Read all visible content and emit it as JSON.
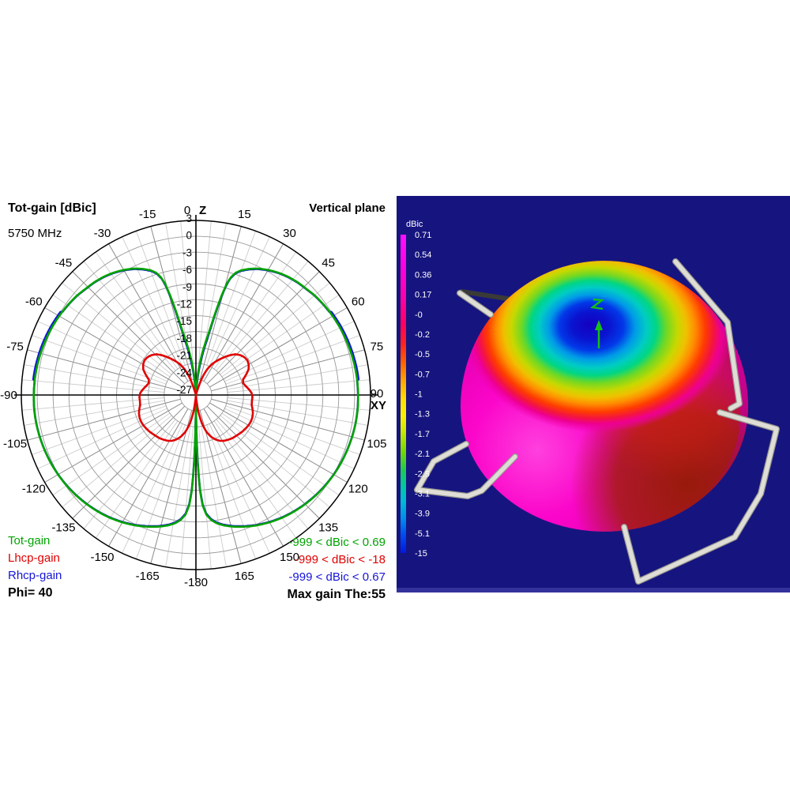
{
  "left_panel": {
    "title": "Tot-gain [dBic]",
    "frequency": "5750 MHz",
    "plane_label": "Vertical plane",
    "axis_top_tick": "0",
    "axis_top_name": "Z",
    "axis_right_tick": "90",
    "axis_right_name": "XY",
    "legend": [
      {
        "label": "Tot-gain",
        "color": "#00a300"
      },
      {
        "label": "Lhcp-gain",
        "color": "#e00000"
      },
      {
        "label": "Rhcp-gain",
        "color": "#1515d8"
      }
    ],
    "phi_label": "Phi= 40",
    "stats": [
      {
        "text": "-999 < dBic < 0.69",
        "color": "#00a300"
      },
      {
        "text": "-999 < dBic < -18",
        "color": "#e00000"
      },
      {
        "text": "-999 < dBic < 0.67",
        "color": "#1515d8"
      }
    ],
    "max_gain_label": "Max gain The:55"
  },
  "chart_data": {
    "type": "polar",
    "title": "Tot-gain [dBic]",
    "plane": "Vertical plane",
    "frequency_mhz": 5750,
    "phi_deg": 40,
    "max_gain_theta_deg": 55,
    "radial_ticks_dbic": [
      3,
      0,
      -3,
      -6,
      -9,
      -12,
      -15,
      -18,
      -21,
      -24,
      -27
    ],
    "radial_min_dbic": -30,
    "radial_max_dbic": 3,
    "angle_step_minor_deg": 5,
    "angle_step_major_deg": 15,
    "angle_labels": [
      0,
      15,
      30,
      45,
      60,
      75,
      90,
      105,
      120,
      135,
      150,
      165,
      -180,
      -165,
      -150,
      -135,
      -120,
      -105,
      -90,
      -75,
      -60,
      -45,
      -30,
      -15
    ],
    "series": [
      {
        "name": "Tot-gain",
        "color": "#00a300",
        "range_text": "-999 < dBic < 0.69",
        "max_dbic": 0.69
      },
      {
        "name": "Lhcp-gain",
        "color": "#e00000",
        "range_text": "-999 < dBic < -18",
        "max_dbic": -18
      },
      {
        "name": "Rhcp-gain",
        "color": "#1515d8",
        "range_text": "-999 < dBic < 0.67",
        "max_dbic": 0.67
      }
    ],
    "tot_gain_attenuation_profile": [
      [
        2,
        -31
      ],
      [
        4,
        -28.5
      ],
      [
        6,
        -26
      ],
      [
        8,
        -23.5
      ],
      [
        10,
        -21
      ],
      [
        11.5,
        -19
      ],
      [
        12.5,
        -17
      ],
      [
        13.2,
        -15
      ],
      [
        13.9,
        -13
      ],
      [
        14.6,
        -11
      ],
      [
        15.4,
        -9
      ],
      [
        16.4,
        -7.6
      ],
      [
        18,
        -6.4
      ],
      [
        20,
        -5.6
      ],
      [
        23,
        -4.8
      ],
      [
        26,
        -4.1
      ],
      [
        30,
        -3.4
      ],
      [
        34,
        -2.8
      ],
      [
        38,
        -2.35
      ],
      [
        42,
        -2.0
      ],
      [
        46,
        -1.75
      ],
      [
        50,
        -1.4
      ],
      [
        55,
        -1.1
      ],
      [
        60,
        -0.85
      ],
      [
        65,
        -0.63
      ],
      [
        70,
        -0.45
      ],
      [
        75,
        -0.3
      ],
      [
        80,
        -0.17
      ],
      [
        85,
        -0.08
      ],
      [
        90,
        -0.03
      ],
      [
        95,
        0
      ],
      [
        100,
        -0.03
      ],
      [
        105,
        -0.12
      ],
      [
        110,
        -0.25
      ],
      [
        115,
        -0.4
      ],
      [
        120,
        -0.6
      ],
      [
        125,
        -0.85
      ],
      [
        130,
        -1.15
      ],
      [
        135,
        -1.5
      ],
      [
        140,
        -1.9
      ],
      [
        145,
        -2.35
      ],
      [
        150,
        -2.9
      ],
      [
        155,
        -3.5
      ],
      [
        160,
        -4.2
      ],
      [
        164,
        -4.8
      ],
      [
        168,
        -5.5
      ],
      [
        171,
        -6.2
      ],
      [
        173,
        -6.9
      ],
      [
        175,
        -8.0
      ],
      [
        176.5,
        -9.8
      ],
      [
        177.5,
        -12.5
      ],
      [
        178.3,
        -16.5
      ],
      [
        179,
        -21.5
      ],
      [
        179.5,
        -26.5
      ],
      [
        180,
        -31
      ]
    ],
    "lhcp_gain_profile": [
      [
        16,
        -29.8
      ],
      [
        20,
        -26.5
      ],
      [
        24,
        -24.5
      ],
      [
        28,
        -23.2
      ],
      [
        32,
        -22.2
      ],
      [
        36,
        -21.2
      ],
      [
        40,
        -20.2
      ],
      [
        44,
        -19.3
      ],
      [
        48,
        -18.8
      ],
      [
        52,
        -18.5
      ],
      [
        56,
        -18.4
      ],
      [
        60,
        -18.6
      ],
      [
        64,
        -19.0
      ],
      [
        68,
        -19.8
      ],
      [
        72,
        -20.6
      ],
      [
        76,
        -20.7
      ],
      [
        80,
        -20.3
      ],
      [
        84,
        -19.8
      ],
      [
        88,
        -19.4
      ],
      [
        92,
        -19.3
      ],
      [
        96,
        -19.4
      ],
      [
        100,
        -19.4
      ],
      [
        104,
        -19.1
      ],
      [
        108,
        -18.8
      ],
      [
        112,
        -18.6
      ],
      [
        116,
        -18.5
      ],
      [
        120,
        -18.5
      ],
      [
        124,
        -18.6
      ],
      [
        128,
        -18.7
      ],
      [
        132,
        -18.9
      ],
      [
        136,
        -19.1
      ],
      [
        140,
        -19.3
      ],
      [
        144,
        -19.6
      ],
      [
        148,
        -19.9
      ],
      [
        152,
        -20.3
      ],
      [
        156,
        -20.9
      ],
      [
        160,
        -21.7
      ],
      [
        164,
        -22.8
      ],
      [
        168,
        -24.5
      ],
      [
        172,
        -27
      ],
      [
        175,
        -29.5
      ],
      [
        177,
        -30.8
      ]
    ]
  },
  "right_panel": {
    "background_color": "#16157f",
    "bottom_band_color": "#33329b",
    "colorbar": {
      "title": "dBic",
      "ticks": [
        "0.71",
        "0.54",
        "0.36",
        "0.17",
        "-0",
        "-0.2",
        "-0.5",
        "-0.7",
        "-1",
        "-1.3",
        "-1.7",
        "-2.1",
        "-2.5",
        "-3.1",
        "-3.9",
        "-5.1",
        "-15"
      ],
      "gradient": [
        [
          0,
          "#ff10ff"
        ],
        [
          0.1,
          "#ff00e0"
        ],
        [
          0.2,
          "#ff00a8"
        ],
        [
          0.28,
          "#ff0060"
        ],
        [
          0.34,
          "#ff2020"
        ],
        [
          0.4,
          "#ff6000"
        ],
        [
          0.46,
          "#ffa800"
        ],
        [
          0.52,
          "#ffe000"
        ],
        [
          0.57,
          "#f8f000"
        ],
        [
          0.62,
          "#c8e800"
        ],
        [
          0.68,
          "#78d800"
        ],
        [
          0.74,
          "#20c850"
        ],
        [
          0.79,
          "#00c8a0"
        ],
        [
          0.84,
          "#00b8d8"
        ],
        [
          0.89,
          "#0090e8"
        ],
        [
          0.94,
          "#0050f0"
        ],
        [
          1,
          "#0018e0"
        ]
      ]
    },
    "z_axis_marker": "z"
  }
}
